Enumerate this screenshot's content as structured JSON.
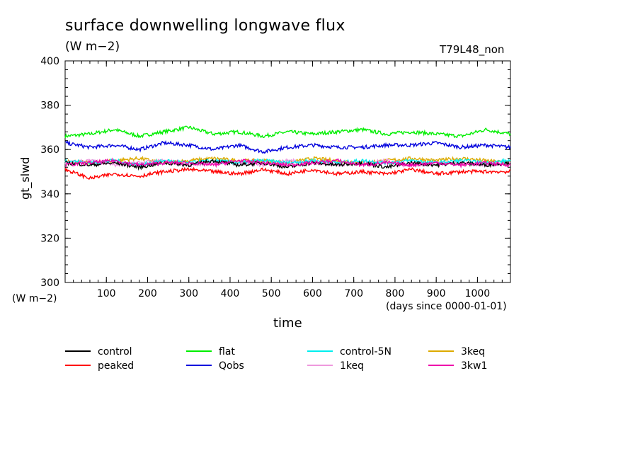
{
  "header": {
    "title": "surface downwelling longwave flux",
    "units": "(W m−2)",
    "run_id": "T79L48_non"
  },
  "axis_units_bottom": "(W m−2)",
  "x_units_note": "(days since 0000-01-01)",
  "chart_data": {
    "type": "line",
    "title": "surface downwelling longwave flux",
    "xlabel": "time",
    "ylabel": "gt_slwd",
    "xlim": [
      0,
      1080
    ],
    "ylim": [
      300,
      400
    ],
    "x_ticks": [
      100,
      200,
      300,
      400,
      500,
      600,
      700,
      800,
      900,
      1000
    ],
    "y_ticks": [
      300,
      320,
      340,
      360,
      380,
      400
    ],
    "grid": false,
    "legend_position": "bottom",
    "x": [
      0,
      60,
      120,
      180,
      240,
      300,
      360,
      420,
      480,
      540,
      600,
      660,
      720,
      780,
      840,
      900,
      960,
      1020,
      1080
    ],
    "series": [
      {
        "name": "control",
        "color": "#000000",
        "values": [
          354,
          353,
          354,
          352,
          354,
          353,
          355,
          353,
          354,
          352,
          354,
          353,
          354,
          352,
          354,
          353,
          354,
          353,
          354
        ]
      },
      {
        "name": "peaked",
        "color": "#ff0000",
        "values": [
          351,
          347,
          349,
          348,
          350,
          351,
          350,
          349,
          351,
          349,
          351,
          349,
          350,
          349,
          351,
          349,
          350,
          350,
          350
        ]
      },
      {
        "name": "flat",
        "color": "#00ee00",
        "values": [
          366,
          367,
          369,
          366,
          368,
          370,
          367,
          368,
          366,
          368,
          367,
          368,
          369,
          367,
          368,
          367,
          366,
          369,
          367
        ]
      },
      {
        "name": "Qobs",
        "color": "#0000dd",
        "values": [
          363,
          361,
          362,
          360,
          363,
          362,
          360,
          362,
          359,
          361,
          362,
          361,
          361,
          362,
          362,
          363,
          361,
          362,
          361
        ]
      },
      {
        "name": "control-5N",
        "color": "#00eeee",
        "values": [
          355,
          354,
          355,
          353,
          355,
          354,
          355,
          354,
          355,
          354,
          355,
          354,
          355,
          354,
          355,
          354,
          355,
          354,
          355
        ]
      },
      {
        "name": "1keq",
        "color": "#ee99dd",
        "values": [
          354,
          355,
          353,
          354,
          355,
          353,
          354,
          354,
          353,
          355,
          354,
          353,
          354,
          355,
          353,
          354,
          354,
          353,
          354
        ]
      },
      {
        "name": "3keq",
        "color": "#ddaa00",
        "values": [
          355,
          354,
          355,
          356,
          354,
          355,
          356,
          355,
          355,
          354,
          356,
          355,
          354,
          355,
          356,
          355,
          356,
          355,
          354
        ]
      },
      {
        "name": "3kw1",
        "color": "#ee00aa",
        "values": [
          353,
          354,
          355,
          353,
          354,
          354,
          353,
          355,
          354,
          353,
          354,
          355,
          353,
          354,
          353,
          354,
          353,
          354,
          353
        ]
      }
    ]
  }
}
